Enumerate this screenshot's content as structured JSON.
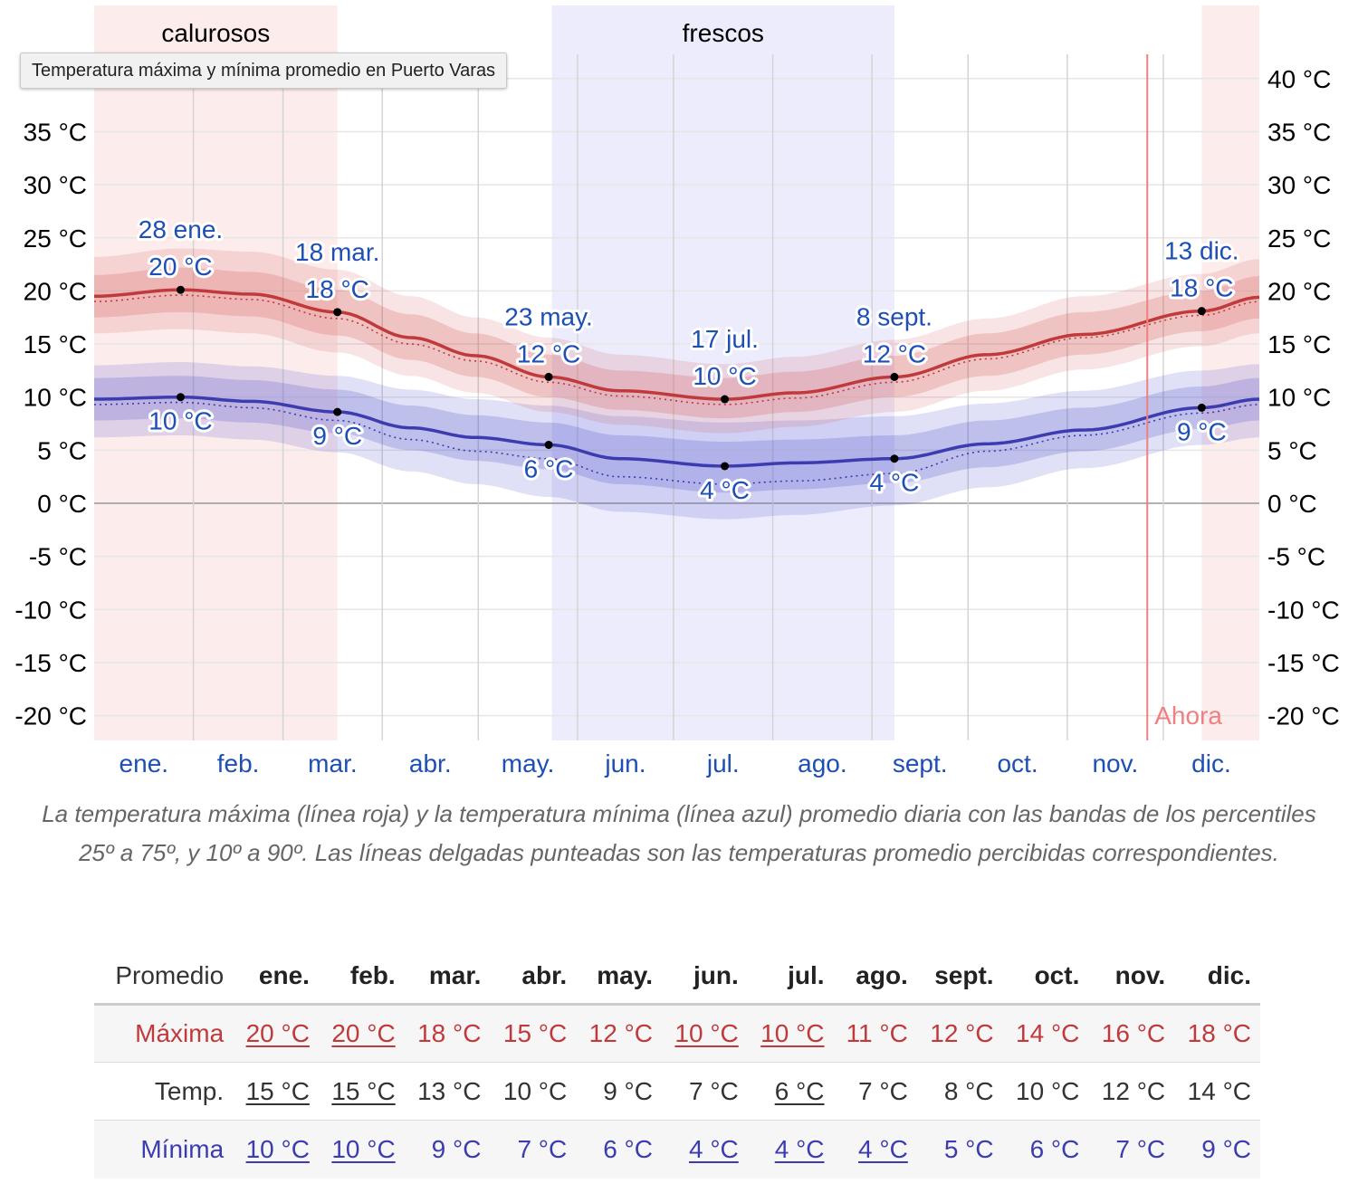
{
  "tooltip": "Temperatura máxima y mínima promedio en Puerto Varas",
  "caption": "La temperatura máxima (línea roja) y la temperatura mínima (línea azul) promedio diaria con las bandas de los percentiles 25º a 75º, y 10º a 90º. Las líneas delgadas punteadas son las temperaturas promedio percibidas correspondientes.",
  "colors": {
    "max": "#c0393b",
    "min": "#3c3cb0",
    "warm_season": "#fdecec",
    "cool_season": "#ececfd",
    "now": "#f08080",
    "month_label": "#1d4fb5"
  },
  "chart_data": {
    "type": "line",
    "xlabel": "",
    "ylabel": "",
    "ylim": [
      -22,
      44
    ],
    "y_ticks": [
      -20,
      -15,
      -10,
      -5,
      0,
      5,
      10,
      15,
      20,
      25,
      30,
      35,
      40
    ],
    "y_tick_labels": [
      "-20 °C",
      "-15 °C",
      "-10 °C",
      "-5 °C",
      "0 °C",
      "5 °C",
      "10 °C",
      "15 °C",
      "20 °C",
      "25 °C",
      "30 °C",
      "35 °C",
      "40 °C"
    ],
    "months": [
      "ene.",
      "feb.",
      "mar.",
      "abr.",
      "may.",
      "jun.",
      "jul.",
      "ago.",
      "sept.",
      "oct.",
      "nov.",
      "dic."
    ],
    "grid": true,
    "seasons": [
      {
        "label": "calurosos",
        "start_day": 1,
        "end_day": 77
      },
      {
        "label": "frescos",
        "start_day": 144,
        "end_day": 251
      },
      {
        "label": "",
        "start_day": 347,
        "end_day": 365
      }
    ],
    "now": {
      "label": "Ahora",
      "day": 330
    },
    "series": [
      {
        "name": "Máxima",
        "days": [
          1,
          28,
          50,
          77,
          100,
          120,
          143,
          165,
          198,
          220,
          251,
          280,
          310,
          347,
          365
        ],
        "values": [
          19.5,
          20.1,
          19.7,
          18.0,
          15.6,
          13.9,
          11.9,
          10.6,
          9.8,
          10.4,
          11.9,
          14.0,
          15.9,
          18.1,
          19.4
        ],
        "p25": [
          17.5,
          18.0,
          17.6,
          15.8,
          13.5,
          11.9,
          10.0,
          8.8,
          8.0,
          8.6,
          10.0,
          12.0,
          14.0,
          16.2,
          17.4
        ],
        "p75": [
          21.5,
          22.2,
          21.8,
          20.1,
          17.8,
          16.0,
          14.0,
          12.5,
          11.8,
          12.4,
          13.9,
          16.0,
          18.0,
          20.0,
          21.4
        ],
        "p10": [
          16.0,
          16.4,
          16.0,
          14.2,
          12.0,
          10.4,
          8.6,
          7.4,
          6.6,
          7.2,
          8.6,
          10.6,
          12.6,
          14.8,
          16.0
        ],
        "p90": [
          23.2,
          24.0,
          23.7,
          22.0,
          19.5,
          17.5,
          15.6,
          14.0,
          13.1,
          13.8,
          15.4,
          17.4,
          19.5,
          21.6,
          23.0
        ],
        "feels": [
          19.0,
          19.6,
          19.2,
          17.4,
          15.0,
          13.4,
          11.4,
          10.1,
          9.3,
          9.9,
          11.4,
          13.6,
          15.6,
          17.7,
          19.0
        ]
      },
      {
        "name": "Mínima",
        "days": [
          1,
          28,
          50,
          77,
          100,
          120,
          143,
          165,
          198,
          220,
          251,
          280,
          310,
          347,
          365
        ],
        "values": [
          9.8,
          10.0,
          9.6,
          8.6,
          7.1,
          6.2,
          5.5,
          4.2,
          3.5,
          3.8,
          4.2,
          5.6,
          6.9,
          9.0,
          9.8
        ],
        "p25": [
          7.8,
          8.0,
          7.6,
          6.6,
          5.0,
          4.0,
          3.2,
          1.8,
          1.0,
          1.3,
          1.9,
          3.4,
          4.9,
          7.0,
          7.8
        ],
        "p75": [
          11.8,
          12.0,
          11.6,
          10.7,
          9.2,
          8.3,
          7.6,
          6.4,
          5.8,
          6.0,
          6.4,
          7.8,
          9.0,
          11.0,
          11.8
        ],
        "p10": [
          6.2,
          6.4,
          6.0,
          4.8,
          3.0,
          1.8,
          0.6,
          -0.8,
          -1.5,
          -1.1,
          -0.2,
          1.5,
          3.3,
          5.5,
          6.2
        ],
        "p90": [
          13.0,
          13.3,
          12.9,
          12.0,
          10.7,
          9.8,
          9.2,
          8.2,
          7.6,
          7.8,
          8.2,
          9.4,
          10.6,
          12.5,
          13.1
        ],
        "feels": [
          9.3,
          9.5,
          9.0,
          7.8,
          6.0,
          4.9,
          4.2,
          2.5,
          1.8,
          2.1,
          2.8,
          4.9,
          6.4,
          8.5,
          9.3
        ]
      }
    ],
    "annotations": [
      {
        "series": "max",
        "day": 28,
        "value": 20.1,
        "date": "28 ene.",
        "temp": "20 °C",
        "pos": "above"
      },
      {
        "series": "max",
        "day": 77,
        "value": 18.0,
        "date": "18 mar.",
        "temp": "18 °C",
        "pos": "above"
      },
      {
        "series": "max",
        "day": 143,
        "value": 11.9,
        "date": "23 may.",
        "temp": "12 °C",
        "pos": "above"
      },
      {
        "series": "max",
        "day": 198,
        "value": 9.8,
        "date": "17 jul.",
        "temp": "10 °C",
        "pos": "above"
      },
      {
        "series": "max",
        "day": 251,
        "value": 11.9,
        "date": "8 sept.",
        "temp": "12 °C",
        "pos": "above"
      },
      {
        "series": "max",
        "day": 347,
        "value": 18.1,
        "date": "13 dic.",
        "temp": "18 °C",
        "pos": "above"
      },
      {
        "series": "min",
        "day": 28,
        "value": 10.0,
        "temp": "10 °C",
        "pos": "below"
      },
      {
        "series": "min",
        "day": 77,
        "value": 8.6,
        "temp": "9 °C",
        "pos": "below"
      },
      {
        "series": "min",
        "day": 143,
        "value": 5.5,
        "temp": "6 °C",
        "pos": "below"
      },
      {
        "series": "min",
        "day": 198,
        "value": 3.5,
        "temp": "4 °C",
        "pos": "below"
      },
      {
        "series": "min",
        "day": 251,
        "value": 4.2,
        "temp": "4 °C",
        "pos": "below"
      },
      {
        "series": "min",
        "day": 347,
        "value": 9.0,
        "temp": "9 °C",
        "pos": "below"
      }
    ]
  },
  "table": {
    "header": [
      "Promedio",
      "ene.",
      "feb.",
      "mar.",
      "abr.",
      "may.",
      "jun.",
      "jul.",
      "ago.",
      "sept.",
      "oct.",
      "nov.",
      "dic."
    ],
    "rows": [
      {
        "label": "Máxima",
        "class": "max",
        "values": [
          "20 °C",
          "20 °C",
          "18 °C",
          "15 °C",
          "12 °C",
          "10 °C",
          "10 °C",
          "11 °C",
          "12 °C",
          "14 °C",
          "16 °C",
          "18 °C"
        ],
        "underlined": [
          true,
          true,
          false,
          false,
          false,
          true,
          true,
          false,
          false,
          false,
          false,
          false
        ]
      },
      {
        "label": "Temp.",
        "class": "temp",
        "values": [
          "15 °C",
          "15 °C",
          "13 °C",
          "10 °C",
          "9 °C",
          "7 °C",
          "6 °C",
          "7 °C",
          "8 °C",
          "10 °C",
          "12 °C",
          "14 °C"
        ],
        "underlined": [
          true,
          true,
          false,
          false,
          false,
          false,
          true,
          false,
          false,
          false,
          false,
          false
        ]
      },
      {
        "label": "Mínima",
        "class": "min",
        "values": [
          "10 °C",
          "10 °C",
          "9 °C",
          "7 °C",
          "6 °C",
          "4 °C",
          "4 °C",
          "4 °C",
          "5 °C",
          "6 °C",
          "7 °C",
          "9 °C"
        ],
        "underlined": [
          true,
          true,
          false,
          false,
          false,
          true,
          true,
          true,
          false,
          false,
          false,
          false
        ]
      }
    ]
  }
}
